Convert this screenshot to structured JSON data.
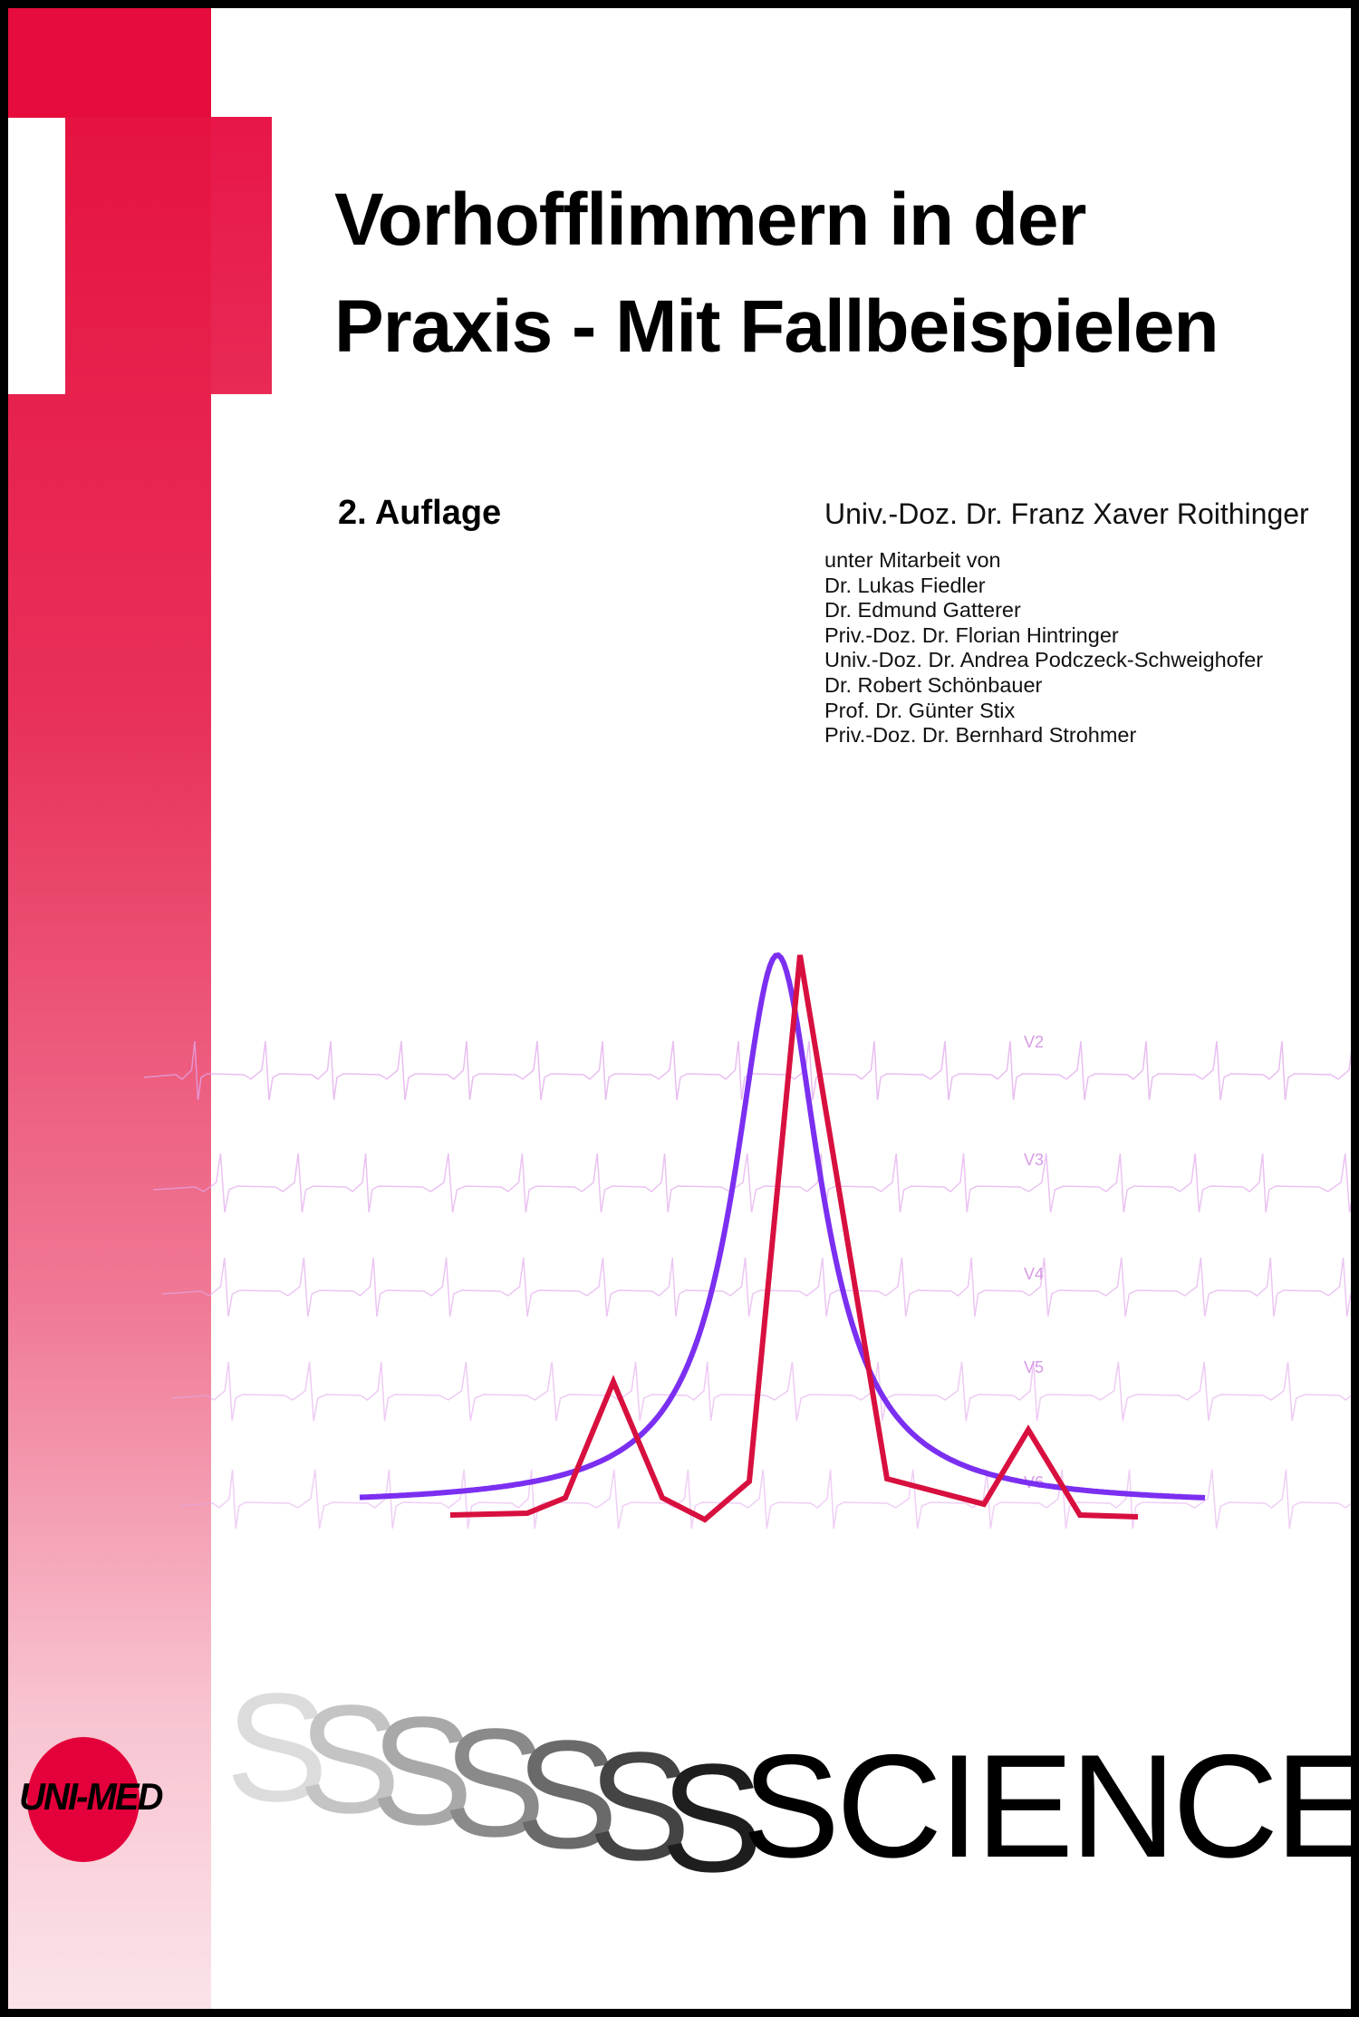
{
  "title_lines": [
    "Vorhofflimmern in der",
    "Praxis - Mit Fallbeispielen"
  ],
  "edition": "2. Auflage",
  "author": "Univ.-Doz. Dr. Franz Xaver Roithinger",
  "contributors": [
    "unter Mitarbeit von",
    "Dr. Lukas Fiedler",
    "Dr. Edmund Gatterer",
    "Priv.-Doz. Dr. Florian Hintringer",
    "Univ.-Doz. Dr. Andrea Podczeck-Schweighofer",
    "Dr. Robert Schönbauer",
    "Prof. Dr. Günter Stix",
    "Priv.-Doz. Dr. Bernhard Strohmer"
  ],
  "ecg_lead_labels": [
    "V2",
    "V3",
    "V4",
    "V5",
    "V6"
  ],
  "series_label": "SCIENCE",
  "publisher_logo": "UNI-MED",
  "colors": {
    "brand_red": "#e60d3c",
    "curve_purple": "#7b2ff0",
    "curve_red": "#d8103f",
    "ecg_pink": "#e2a8ec"
  }
}
